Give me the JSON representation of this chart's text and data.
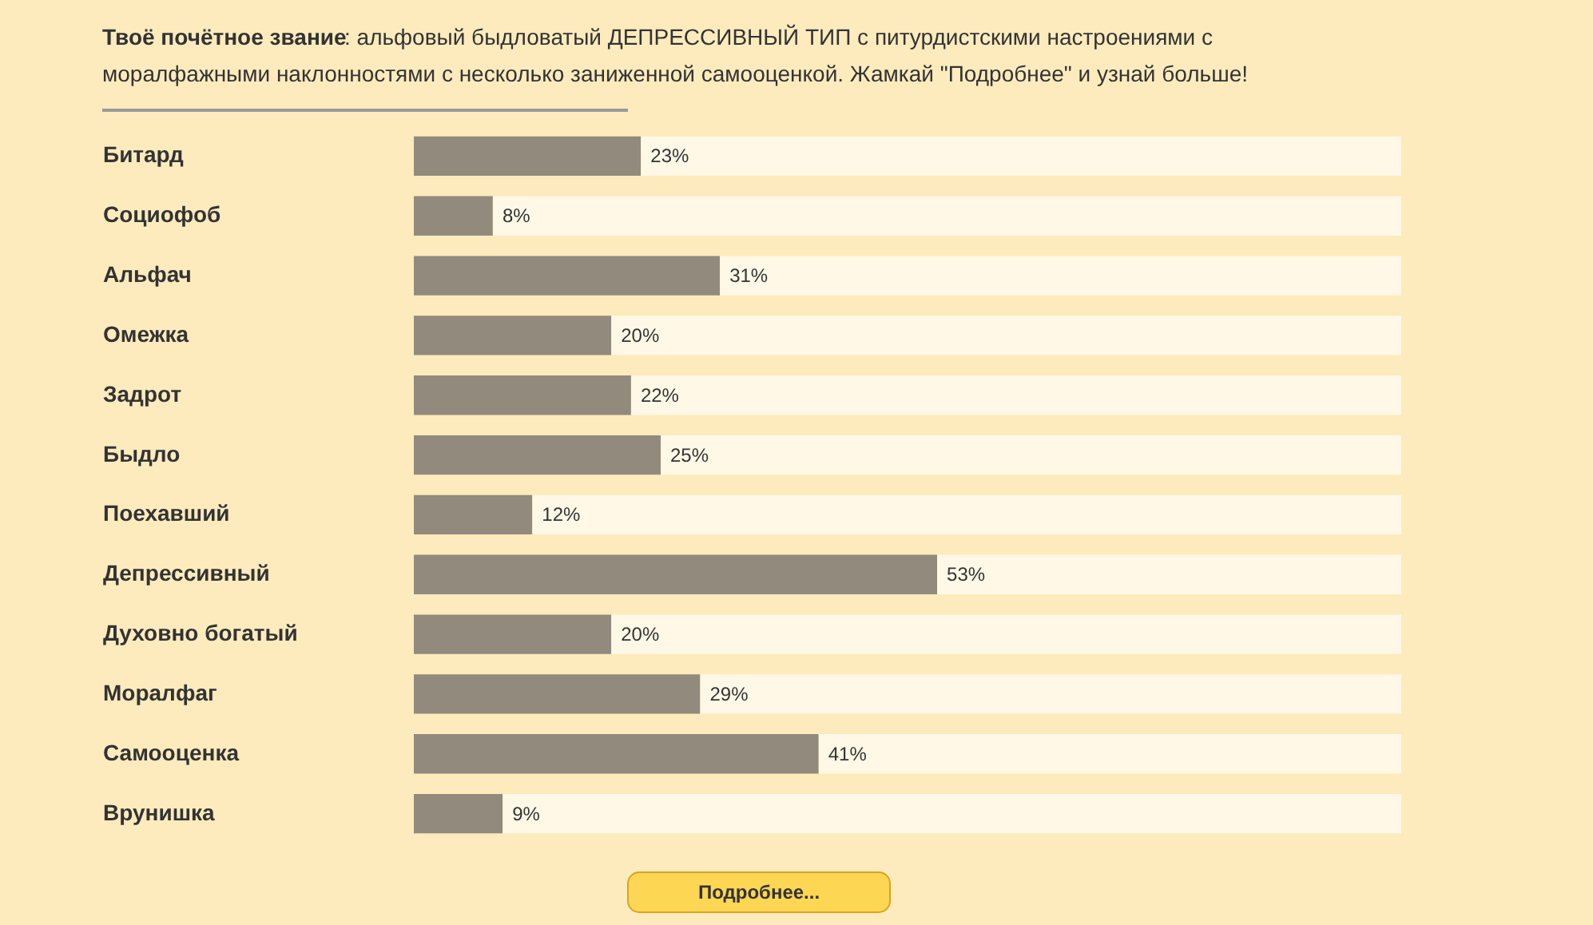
{
  "chart_data": {
    "type": "bar",
    "orientation": "horizontal",
    "stacked": true,
    "title": "Твоё почётное звание",
    "subtitle": ": альфовый быдловатый ДЕПРЕССИВНЫЙ ТИП с питурдистскими настроениями с моралфажными наклонностями с несколько заниженной самооценкой. Жамкай \"Подробнее\" и узнай больше!",
    "categories": [
      "Битард",
      "Социофоб",
      "Альфач",
      "Омежка",
      "Задрот",
      "Быдло",
      "Поехавший",
      "Депрессивный",
      "Духовно богатый",
      "Моралфаг",
      "Самооценка",
      "Врунишка"
    ],
    "series": [
      {
        "color": "#928a7c",
        "values": [
          23,
          8,
          31,
          20,
          22,
          25,
          12,
          53,
          20,
          29,
          41,
          9
        ],
        "value_labels": [
          "23%",
          "8%",
          "31%",
          "20%",
          "22%",
          "25%",
          "12%",
          "53%",
          "20%",
          "29%",
          "41%",
          "9%"
        ]
      },
      {
        "color": "#fff8e6",
        "values": [
          77,
          92,
          69,
          80,
          78,
          75,
          88,
          47,
          80,
          71,
          59,
          91
        ]
      }
    ],
    "xlim": [
      0,
      100
    ],
    "tick_labels": "y",
    "annotations": [
      "Подробнее..."
    ]
  }
}
